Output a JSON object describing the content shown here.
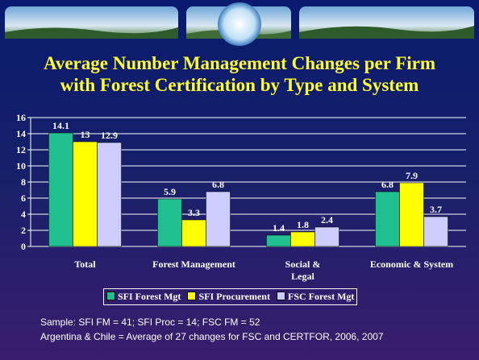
{
  "chart_data": {
    "type": "bar",
    "title": [
      "Average Number Management Changes per Firm",
      "with Forest Certification by Type and System"
    ],
    "categories": [
      "Total",
      "Forest Management",
      "Social & Legal",
      "Economic & System"
    ],
    "series": [
      {
        "name": "SFI Forest Mgt",
        "color": "#1fbf8f",
        "values": [
          14.1,
          5.9,
          1.4,
          6.8
        ]
      },
      {
        "name": "SFI Procurement",
        "color": "#ffff00",
        "values": [
          13,
          3.3,
          1.8,
          7.9
        ]
      },
      {
        "name": "FSC Forest Mgt",
        "color": "#ccccff",
        "values": [
          12.9,
          6.8,
          2.4,
          3.7
        ]
      }
    ],
    "ylim": [
      0,
      16
    ],
    "yticks": [
      0,
      2,
      4,
      6,
      8,
      10,
      12,
      14,
      16
    ],
    "grid": true,
    "legend": "bottom",
    "notes": [
      "Sample: SFI FM = 41; SFI Proc = 14; FSC FM = 52",
      "Argentina & Chile = Average of 27 changes for FSC and CERTFOR, 2006, 2007"
    ]
  }
}
